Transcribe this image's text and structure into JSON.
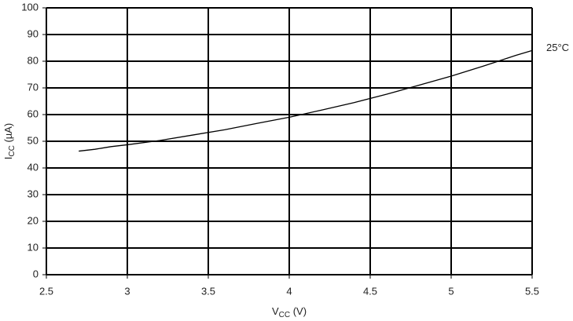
{
  "chart_data": {
    "type": "line",
    "x_label": {
      "main": "V",
      "sub": "CC",
      "rest": " (V)"
    },
    "y_label": {
      "main": "I",
      "sub": "CC",
      "rest": " (µA)"
    },
    "x": [
      2.7,
      2.8,
      2.9,
      3.0,
      3.2,
      3.4,
      3.6,
      3.8,
      4.0,
      4.2,
      4.4,
      4.6,
      4.8,
      5.0,
      5.2,
      5.4,
      5.5
    ],
    "series": [
      {
        "name": "25°C",
        "color": "#000000",
        "values": [
          46.3,
          47,
          48,
          48.7,
          50.3,
          52.3,
          54.3,
          56.7,
          59,
          61.7,
          64.5,
          67.6,
          71,
          74.4,
          78.2,
          82.2,
          84
        ]
      }
    ],
    "xlim": [
      2.5,
      5.5
    ],
    "xticks": [
      2.5,
      3,
      3.5,
      4,
      4.5,
      5,
      5.5
    ],
    "ylim": [
      0,
      100
    ],
    "yticks": [
      0,
      10,
      20,
      30,
      40,
      50,
      60,
      70,
      80,
      90,
      100
    ],
    "grid": true
  }
}
